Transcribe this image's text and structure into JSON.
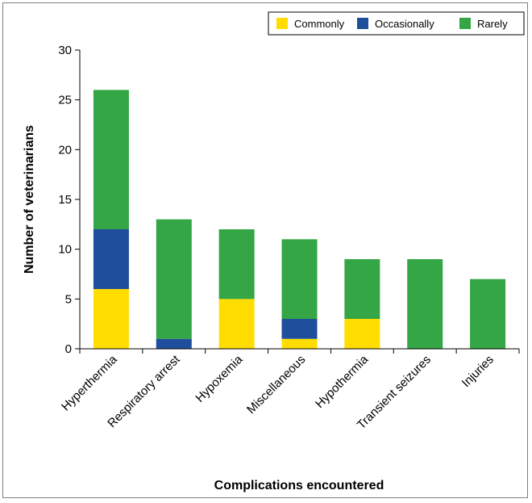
{
  "chart_data": {
    "type": "bar",
    "stacked": true,
    "categories": [
      "Hyperthermia",
      "Respiratory arrest",
      "Hypoxemia",
      "Miscellaneous",
      "Hypothermia",
      "Transient seizures",
      "Injuries"
    ],
    "series": [
      {
        "name": "Commonly",
        "color": "#ffdd00",
        "values": [
          6,
          0,
          5,
          1,
          3,
          0,
          0
        ]
      },
      {
        "name": "Occasionally",
        "color": "#1f4e9c",
        "values": [
          6,
          1,
          0,
          2,
          0,
          0,
          0
        ]
      },
      {
        "name": "Rarely",
        "color": "#34a645",
        "values": [
          14,
          12,
          7,
          8,
          6,
          9,
          7
        ]
      }
    ],
    "title": "",
    "xlabel": "Complications encountered",
    "ylabel": "Number of veterinarians",
    "ylim": [
      0,
      30
    ],
    "yticks": [
      "0",
      "5",
      "10",
      "15",
      "20",
      "25",
      "30"
    ],
    "legend_position": "top-right",
    "grid": false
  }
}
